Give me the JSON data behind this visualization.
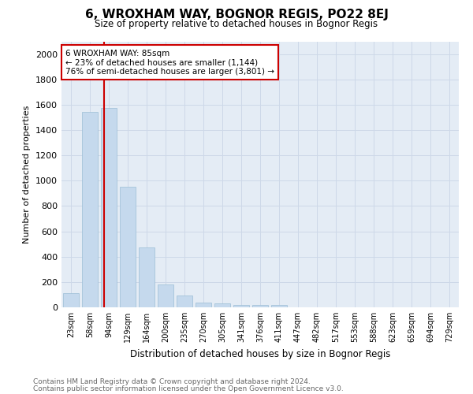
{
  "title": "6, WROXHAM WAY, BOGNOR REGIS, PO22 8EJ",
  "subtitle": "Size of property relative to detached houses in Bognor Regis",
  "xlabel": "Distribution of detached houses by size in Bognor Regis",
  "ylabel": "Number of detached properties",
  "footnote1": "Contains HM Land Registry data © Crown copyright and database right 2024.",
  "footnote2": "Contains public sector information licensed under the Open Government Licence v3.0.",
  "categories": [
    "23sqm",
    "58sqm",
    "94sqm",
    "129sqm",
    "164sqm",
    "200sqm",
    "235sqm",
    "270sqm",
    "305sqm",
    "341sqm",
    "376sqm",
    "411sqm",
    "447sqm",
    "482sqm",
    "517sqm",
    "553sqm",
    "588sqm",
    "623sqm",
    "659sqm",
    "694sqm",
    "729sqm"
  ],
  "values": [
    110,
    1540,
    1575,
    950,
    475,
    180,
    95,
    35,
    30,
    20,
    20,
    20,
    0,
    0,
    0,
    0,
    0,
    0,
    0,
    0,
    0
  ],
  "bar_color": "#c5d9ed",
  "bar_edge_color": "#9bbdd6",
  "grid_color": "#cdd8e8",
  "background_color": "#e4ecf5",
  "property_line_color": "#cc0000",
  "annotation_line1": "6 WROXHAM WAY: 85sqm",
  "annotation_line2": "← 23% of detached houses are smaller (1,144)",
  "annotation_line3": "76% of semi-detached houses are larger (3,801) →",
  "annotation_box_color": "#cc0000",
  "ylim": [
    0,
    2100
  ],
  "yticks": [
    0,
    200,
    400,
    600,
    800,
    1000,
    1200,
    1400,
    1600,
    1800,
    2000
  ]
}
